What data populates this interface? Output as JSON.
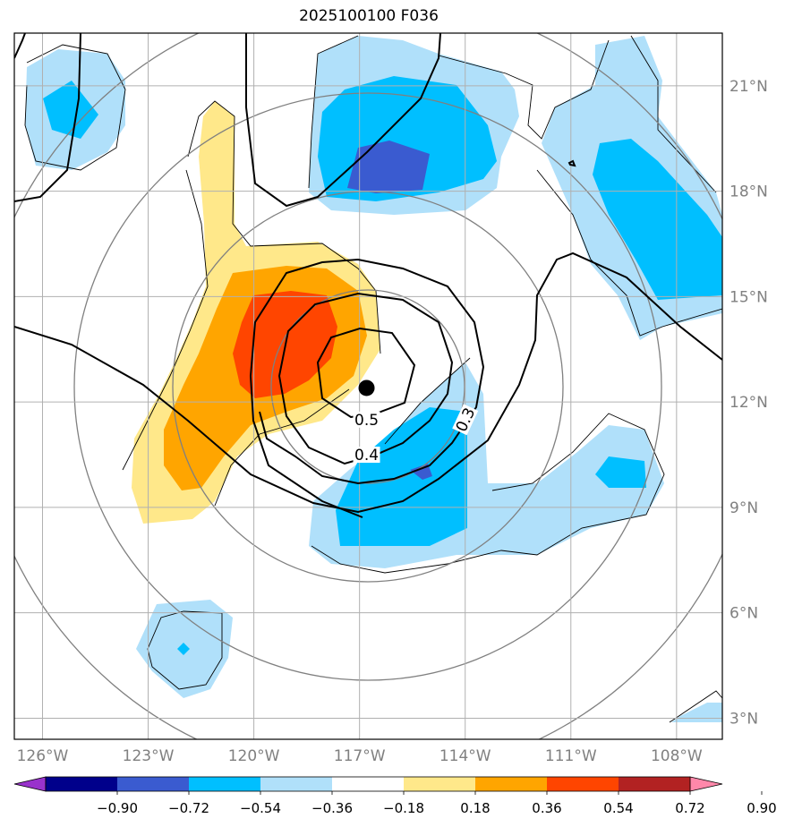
{
  "chart_data": {
    "type": "heatmap",
    "title": "2025100100 F036",
    "x_ticks": [
      "126°W",
      "123°W",
      "120°W",
      "117°W",
      "114°W",
      "111°W",
      "108°W"
    ],
    "y_ticks": [
      "21°N",
      "18°N",
      "15°N",
      "12°N",
      "9°N",
      "6°N",
      "3°N"
    ],
    "x_range_lon": [
      -126.8,
      -106.7
    ],
    "y_range_lat": [
      2.4,
      22.5
    ],
    "grid": true,
    "center_marker": {
      "lon": -116.8,
      "lat": 12.4
    },
    "colorbar": {
      "ticks": [
        "−0.90",
        "−0.72",
        "−0.54",
        "−0.36",
        "−0.18",
        "0.18",
        "0.36",
        "0.54",
        "0.72",
        "0.90"
      ],
      "colors": [
        "#9932cc",
        "#00008b",
        "#3a5bd0",
        "#00bfff",
        "#b0e0fa",
        "#ffffff",
        "#ffe88a",
        "#ffa500",
        "#ff4500",
        "#b22222",
        "#ff88aa"
      ]
    },
    "contour_labels": [
      {
        "text": "0.5",
        "lon": -116.8,
        "lat": 11.5
      },
      {
        "text": "0.4",
        "lon": -116.8,
        "lat": 10.5
      },
      {
        "text": "0.3",
        "lon": -114.0,
        "lat": 11.5
      }
    ]
  }
}
